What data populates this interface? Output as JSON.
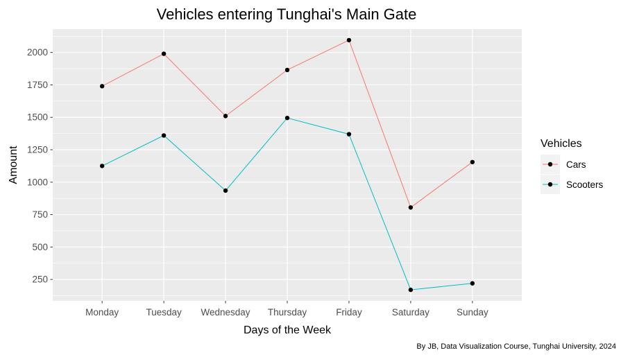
{
  "chart_data": {
    "type": "line",
    "title": "Vehicles entering Tunghai's Main Gate",
    "xlabel": "Days of the Week",
    "ylabel": "Amount",
    "caption": "By JB, Data Visualization Course, Tunghai University, 2024",
    "categories": [
      "Monday",
      "Tuesday",
      "Wednesday",
      "Thursday",
      "Friday",
      "Saturday",
      "Sunday"
    ],
    "yticks": [
      250,
      500,
      750,
      1000,
      1250,
      1500,
      1750,
      2000
    ],
    "ylim": [
      85,
      2180
    ],
    "grid": true,
    "legend": {
      "title": "Vehicles",
      "position": "right"
    },
    "series": [
      {
        "name": "Cars",
        "color": "#F8766D",
        "values": [
          1740,
          1990,
          1510,
          1865,
          2095,
          805,
          1155
        ]
      },
      {
        "name": "Scooters",
        "color": "#00BFC4",
        "values": [
          1125,
          1360,
          935,
          1495,
          1370,
          170,
          220
        ]
      }
    ]
  }
}
